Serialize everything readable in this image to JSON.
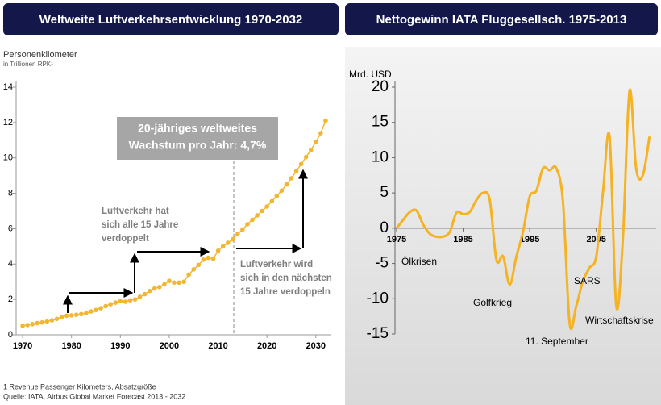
{
  "chart_data": [
    {
      "type": "line",
      "title": "Weltweite Luftverkehrsentwicklung 1970-2032",
      "y_label": "Personenkilometer",
      "y_sublabel": "in Trillionen RPK¹",
      "markers": true,
      "x": [
        1970,
        1971,
        1972,
        1973,
        1974,
        1975,
        1976,
        1977,
        1978,
        1979,
        1980,
        1981,
        1982,
        1983,
        1984,
        1985,
        1986,
        1987,
        1988,
        1989,
        1990,
        1991,
        1992,
        1993,
        1994,
        1995,
        1996,
        1997,
        1998,
        1999,
        2000,
        2001,
        2002,
        2003,
        2004,
        2005,
        2006,
        2007,
        2008,
        2009,
        2010,
        2011,
        2012,
        2013,
        2014,
        2015,
        2016,
        2017,
        2018,
        2019,
        2020,
        2021,
        2022,
        2023,
        2024,
        2025,
        2026,
        2027,
        2028,
        2029,
        2030,
        2031,
        2032
      ],
      "series": [
        {
          "color": "#f2b632",
          "values": [
            0.5,
            0.55,
            0.6,
            0.66,
            0.7,
            0.75,
            0.82,
            0.9,
            1.0,
            1.08,
            1.1,
            1.13,
            1.17,
            1.23,
            1.32,
            1.4,
            1.5,
            1.62,
            1.73,
            1.82,
            1.9,
            1.87,
            1.95,
            2.0,
            2.15,
            2.3,
            2.48,
            2.62,
            2.7,
            2.85,
            3.05,
            2.95,
            2.95,
            3.0,
            3.4,
            3.7,
            3.95,
            4.25,
            4.35,
            4.3,
            4.75,
            5.0,
            5.2,
            5.4,
            5.7,
            5.95,
            6.25,
            6.5,
            6.75,
            7.0,
            7.25,
            7.55,
            7.85,
            8.15,
            8.5,
            8.85,
            9.25,
            9.65,
            10.05,
            10.45,
            10.9,
            11.4,
            12.1
          ]
        }
      ],
      "xlim": [
        1969,
        2033
      ],
      "xticks": [
        1970,
        1980,
        1990,
        2000,
        2010,
        2020,
        2030
      ],
      "ylim": [
        0,
        14
      ],
      "yticks": [
        0,
        2,
        4,
        6,
        8,
        10,
        12,
        14
      ],
      "annotations": [
        [
          "20-jähriges weltweites",
          "Wachstum pro Jahr: 4,7%"
        ],
        [
          "Luftverkehr hat",
          "sich alle 15 Jahre",
          "verdoppelt"
        ],
        [
          "Luftverkehr wird",
          "sich in den nächsten",
          "15 Jahre verdoppeln"
        ]
      ],
      "footnotes": [
        "1  Revenue Passenger Kilometers, Absatzgröße",
        "Quelle: IATA, Airbus Global Market Forecast 2013 - 2032"
      ]
    },
    {
      "type": "line",
      "title": "Nettogewinn IATA Fluggesellsch. 1975-2013",
      "y_label": "Mrd. USD",
      "smooth": true,
      "x": [
        1975,
        1976,
        1977,
        1978,
        1979,
        1980,
        1981,
        1982,
        1983,
        1984,
        1985,
        1986,
        1987,
        1988,
        1989,
        1990,
        1991,
        1992,
        1993,
        1994,
        1995,
        1996,
        1997,
        1998,
        1999,
        2000,
        2001,
        2002,
        2003,
        2004,
        2005,
        2006,
        2007,
        2008,
        2009,
        2010,
        2011,
        2012,
        2013
      ],
      "series": [
        {
          "color": "#f5b324",
          "values": [
            0,
            1.2,
            2.3,
            2.5,
            0.5,
            -0.8,
            -1.2,
            -1.2,
            -0.5,
            2.2,
            2,
            2.3,
            4,
            5,
            4,
            -4.5,
            -4,
            -8,
            -4,
            -0.5,
            4.5,
            5.3,
            8.5,
            8.2,
            8.5,
            3.7,
            -13.5,
            -11,
            -7.5,
            -5.6,
            -4,
            5,
            13,
            -11,
            -1.5,
            19.5,
            8.4,
            7.5,
            13
          ]
        }
      ],
      "xlim": [
        1975,
        2014
      ],
      "xticks": [
        1975,
        1985,
        1995,
        2005
      ],
      "ylim": [
        -15,
        20
      ],
      "yticks": [
        -15,
        -10,
        -5,
        0,
        5,
        10,
        15,
        20
      ],
      "annotations": [
        "Ölkrisen",
        "Golfkrieg",
        "11. September",
        "SARS",
        "Wirtschaftskrise"
      ]
    }
  ]
}
